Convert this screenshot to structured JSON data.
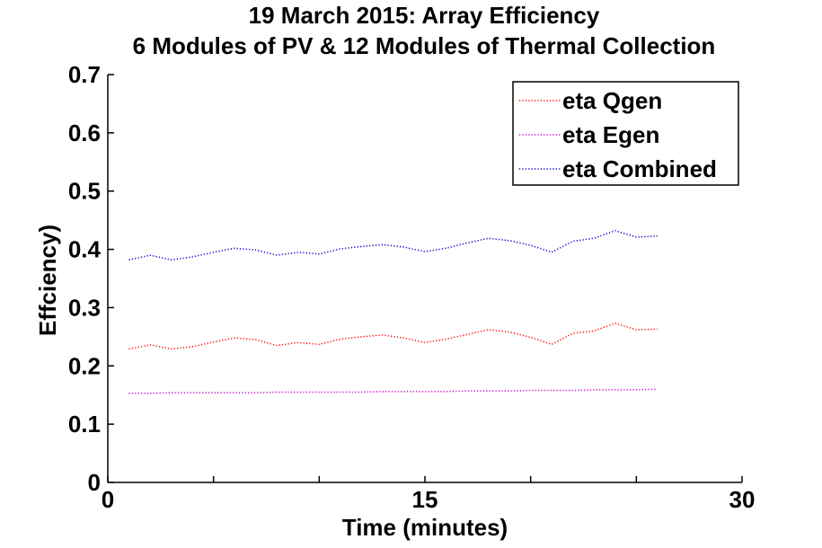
{
  "chart_data": {
    "type": "line",
    "title": "19 March 2015: Array Efficiency",
    "subtitle": "6 Modules of PV & 12 Modules of Thermal Collection",
    "xlabel": "Time (minutes)",
    "ylabel": "Effciency)",
    "xlim": [
      0,
      30
    ],
    "ylim": [
      0,
      0.7
    ],
    "xticks": [
      0,
      15,
      30
    ],
    "xtick_labels": [
      "0",
      "15",
      "30"
    ],
    "x_minor_ticks": [
      5,
      10,
      20,
      25
    ],
    "yticks": [
      0,
      0.1,
      0.2,
      0.3,
      0.4,
      0.5,
      0.6,
      0.7
    ],
    "ytick_labels": [
      "0",
      "0.1",
      "0.2",
      "0.3",
      "0.4",
      "0.5",
      "0.6",
      "0.7"
    ],
    "grid": false,
    "legend_position": "top-right",
    "x": [
      1,
      2,
      3,
      4,
      5,
      6,
      7,
      8,
      9,
      10,
      11,
      12,
      13,
      14,
      15,
      16,
      17,
      18,
      19,
      20,
      21,
      22,
      23,
      24,
      25,
      26
    ],
    "series": [
      {
        "name": "eta Qgen",
        "color": "#ff0000",
        "values": [
          0.229,
          0.236,
          0.229,
          0.233,
          0.241,
          0.248,
          0.245,
          0.235,
          0.24,
          0.237,
          0.246,
          0.25,
          0.253,
          0.248,
          0.24,
          0.246,
          0.254,
          0.262,
          0.258,
          0.249,
          0.237,
          0.256,
          0.26,
          0.273,
          0.262,
          0.263
        ]
      },
      {
        "name": "eta Egen",
        "color": "#cc00cc",
        "values": [
          0.153,
          0.153,
          0.154,
          0.154,
          0.154,
          0.154,
          0.154,
          0.155,
          0.155,
          0.155,
          0.155,
          0.155,
          0.156,
          0.156,
          0.156,
          0.156,
          0.157,
          0.157,
          0.157,
          0.158,
          0.158,
          0.158,
          0.159,
          0.159,
          0.159,
          0.16
        ]
      },
      {
        "name": "eta Combined",
        "color": "#0000cc",
        "values": [
          0.382,
          0.39,
          0.382,
          0.387,
          0.395,
          0.402,
          0.399,
          0.39,
          0.395,
          0.392,
          0.401,
          0.405,
          0.408,
          0.404,
          0.396,
          0.402,
          0.411,
          0.419,
          0.415,
          0.407,
          0.395,
          0.414,
          0.419,
          0.432,
          0.421,
          0.423
        ]
      }
    ]
  }
}
